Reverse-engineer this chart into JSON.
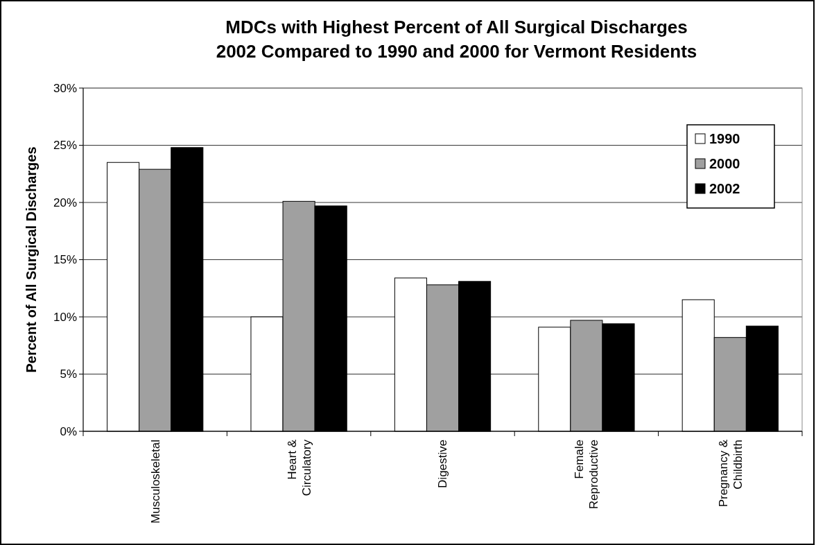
{
  "chart_data": {
    "type": "bar",
    "title": "MDCs with Highest Percent of All Surgical Discharges\n2002 Compared to 1990 and 2000 for Vermont Residents",
    "ylabel": "Percent of All Surgical Discharges",
    "categories": [
      "Musculoskeletal",
      "Heart & Circulatory",
      "Digestive",
      "Female Reproductive",
      "Pregnancy & Childbirth"
    ],
    "series": [
      {
        "name": "1990",
        "color": "#ffffff",
        "values": [
          23.5,
          10.0,
          13.4,
          9.1,
          11.5
        ]
      },
      {
        "name": "2000",
        "color": "#a0a0a0",
        "values": [
          22.9,
          20.1,
          12.8,
          9.7,
          8.2
        ]
      },
      {
        "name": "2002",
        "color": "#000000",
        "values": [
          24.8,
          19.7,
          13.1,
          9.4,
          9.2
        ]
      }
    ],
    "ylim": [
      0,
      30
    ],
    "yticks": [
      {
        "value": 0,
        "label": "0%"
      },
      {
        "value": 5,
        "label": "5%"
      },
      {
        "value": 10,
        "label": "10%"
      },
      {
        "value": 15,
        "label": "15%"
      },
      {
        "value": 20,
        "label": "20%"
      },
      {
        "value": 25,
        "label": "25%"
      },
      {
        "value": 30,
        "label": "30%"
      }
    ],
    "grid": "y",
    "legend": "top right"
  }
}
